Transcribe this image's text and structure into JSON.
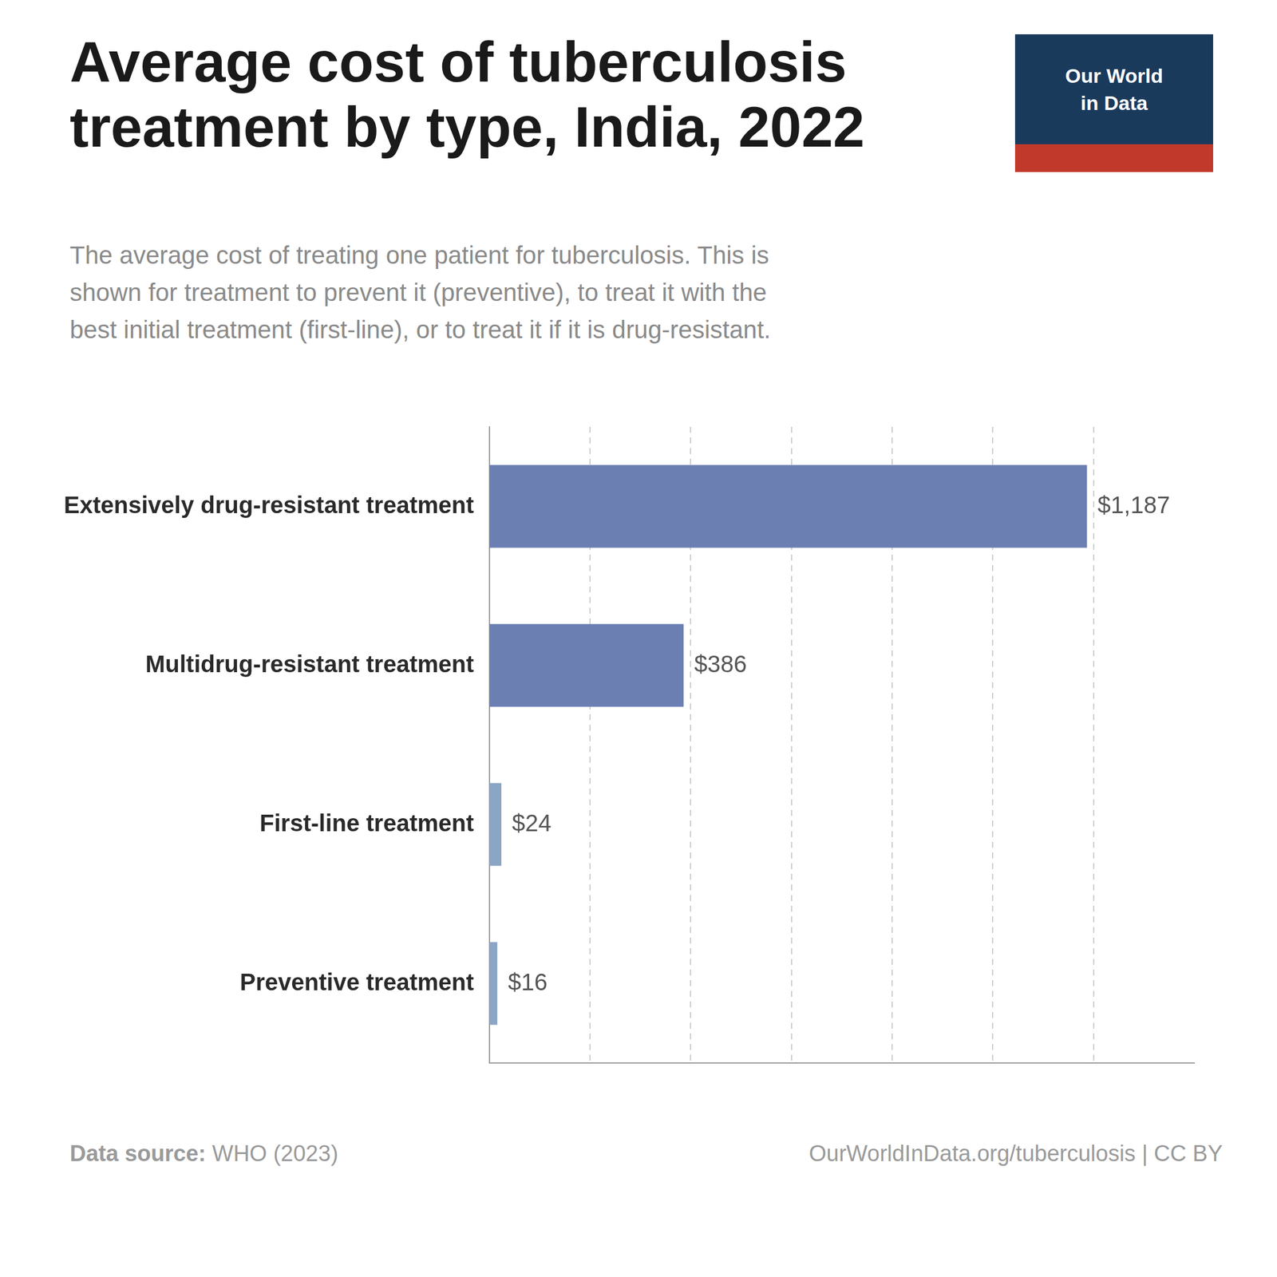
{
  "chart_data": {
    "type": "bar",
    "orientation": "horizontal",
    "title": "Average cost of tuberculosis\ntreatment by type, India, 2022",
    "subtitle": "The average cost of treating one patient for tuberculosis. This is\nshown for treatment to prevent it (preventive), to treat it with the\nbest initial treatment (first-line), or to treat it if it is drug-resistant.",
    "categories": [
      "Preventive treatment",
      "First-line treatment",
      "Multidrug-resistant treatment",
      "Extensively drug-resistant treatment"
    ],
    "values": [
      16,
      24,
      386,
      1187
    ],
    "value_labels": [
      "$16",
      "$24",
      "$386",
      "$1,187"
    ],
    "data_labels": true,
    "colors": [
      "#8ba5c4",
      "#8ba5c4",
      "#6b7fb3",
      "#6b7fb3"
    ],
    "xlim": [
      0,
      1400
    ],
    "xticks": [
      200,
      400,
      600,
      800,
      1000,
      1200
    ],
    "grid": true,
    "tick_labels": "y",
    "logo_text": [
      "Our World",
      "in Data"
    ],
    "source_label": "Data source:",
    "source": "WHO (2023)",
    "footer": "OurWorldInData.org/tuberculosis | CC BY"
  }
}
